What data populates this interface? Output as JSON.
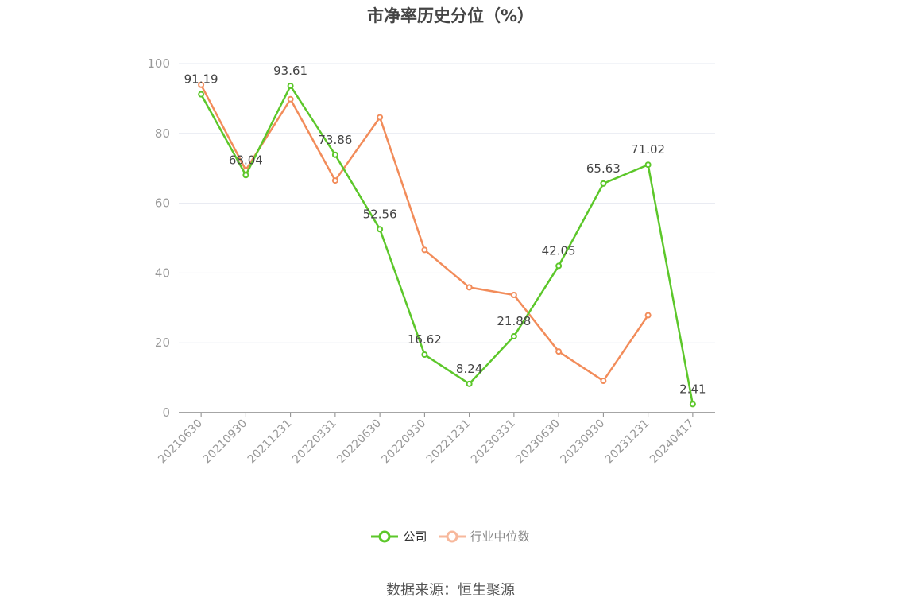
{
  "title": "市净率历史分位（%）",
  "source": "数据来源：恒生聚源",
  "colors": {
    "company": "#5cc72a",
    "industry": "#f28c5a",
    "grid": "#e6e8f0",
    "axis": "#888888",
    "tick": "#999999"
  },
  "legend": [
    {
      "name": "公司",
      "color": "#5cc72a",
      "active": true
    },
    {
      "name": "行业中位数",
      "color": "#f7b89c",
      "active": false
    }
  ],
  "chart_data": {
    "type": "line",
    "title": "市净率历史分位（%）",
    "xlabel": "",
    "ylabel": "",
    "ylim": [
      0,
      100
    ],
    "yticks": [
      0,
      20,
      40,
      60,
      80,
      100
    ],
    "grid": true,
    "legend_position": "bottom",
    "categories": [
      "20210630",
      "20210930",
      "20211231",
      "20220331",
      "20220630",
      "20220930",
      "20221231",
      "20230331",
      "20230630",
      "20230930",
      "20231231",
      "20240417"
    ],
    "series": [
      {
        "name": "公司",
        "color": "#5cc72a",
        "show_labels": true,
        "values": [
          91.19,
          68.04,
          93.61,
          73.86,
          52.56,
          16.62,
          8.24,
          21.88,
          42.05,
          65.63,
          71.02,
          2.41
        ]
      },
      {
        "name": "行业中位数",
        "color": "#f28c5a",
        "show_labels": false,
        "values": [
          93.9,
          69.5,
          89.8,
          66.5,
          84.6,
          46.6,
          35.9,
          33.7,
          17.5,
          9.1,
          27.9,
          null
        ]
      }
    ]
  }
}
